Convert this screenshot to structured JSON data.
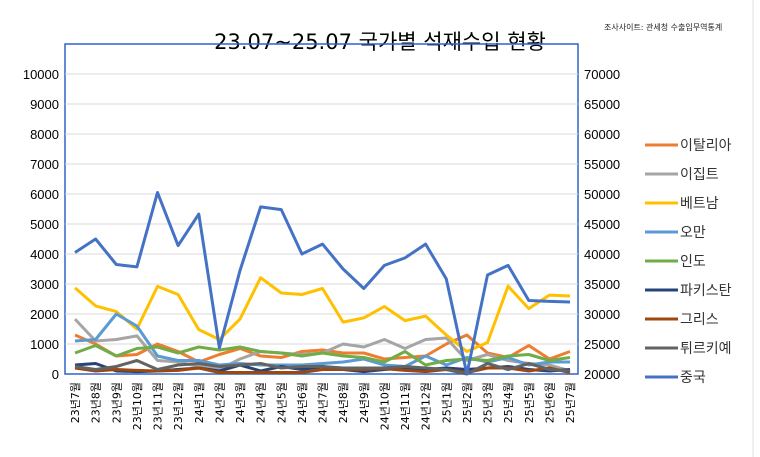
{
  "chart_data": {
    "type": "line",
    "title": "23.07~25.07 국가별 석재수입 현황",
    "source": "조사사이트: 관세청 수출입무역통계",
    "categories": [
      "23년7월",
      "23년8월",
      "23년9월",
      "23년10월",
      "23년11월",
      "23년12월",
      "24년1월",
      "24년2월",
      "24년3월",
      "24년4월",
      "24년5월",
      "24년6월",
      "24년7월",
      "24년8월",
      "24년9월",
      "24년10월",
      "24년11월",
      "24년12월",
      "25년1월",
      "25년2월",
      "25년3월",
      "25년4월",
      "25년5월",
      "25년6월",
      "25년7월"
    ],
    "ylim": [
      0,
      10000
    ],
    "y2lim": [
      20000,
      70000
    ],
    "yticks": [
      "0",
      "1000",
      "2000",
      "3000",
      "4000",
      "5000",
      "6000",
      "7000",
      "8000",
      "9000",
      "10000"
    ],
    "y2ticks": [
      "20000",
      "25000",
      "30000",
      "35000",
      "40000",
      "45000",
      "50000",
      "55000",
      "60000",
      "65000",
      "70000"
    ],
    "grid": true,
    "legend_position": "right",
    "series": [
      {
        "name": "이탈리아",
        "color": "#ED7D31",
        "axis": "left",
        "values": [
          1300,
          1000,
          600,
          650,
          1000,
          750,
          400,
          650,
          850,
          600,
          550,
          750,
          800,
          700,
          700,
          500,
          550,
          600,
          1000,
          1300,
          700,
          550,
          950,
          500,
          750
        ]
      },
      {
        "name": "이집트",
        "color": "#A5A5A5",
        "axis": "left",
        "values": [
          1830,
          1100,
          1150,
          1270,
          450,
          400,
          250,
          150,
          500,
          750,
          700,
          650,
          700,
          1000,
          900,
          1150,
          850,
          1150,
          1200,
          450,
          650,
          450,
          350,
          300,
          100
        ]
      },
      {
        "name": "베트남",
        "color": "#FFC000",
        "axis": "left",
        "values": [
          2870,
          2270,
          2080,
          1500,
          2920,
          2650,
          1480,
          1150,
          1830,
          3210,
          2700,
          2650,
          2850,
          1730,
          1870,
          2250,
          1780,
          1930,
          1300,
          750,
          1050,
          2930,
          2180,
          2630,
          2600
        ]
      },
      {
        "name": "오만",
        "color": "#5B9BD5",
        "axis": "left",
        "values": [
          1100,
          1150,
          2000,
          1600,
          600,
          450,
          450,
          300,
          350,
          300,
          300,
          300,
          350,
          400,
          500,
          300,
          250,
          600,
          300,
          550,
          400,
          550,
          300,
          400,
          400
        ]
      },
      {
        "name": "인도",
        "color": "#70AD47",
        "axis": "left",
        "values": [
          700,
          950,
          600,
          850,
          900,
          700,
          900,
          800,
          900,
          750,
          700,
          600,
          700,
          600,
          550,
          400,
          750,
          300,
          450,
          500,
          450,
          600,
          650,
          450,
          550
        ]
      },
      {
        "name": "파키스탄",
        "color": "#264478",
        "axis": "left",
        "values": [
          300,
          350,
          100,
          80,
          100,
          150,
          200,
          100,
          300,
          100,
          250,
          150,
          250,
          150,
          80,
          150,
          200,
          150,
          200,
          150,
          200,
          250,
          150,
          100,
          150
        ]
      },
      {
        "name": "그리스",
        "color": "#9E480E",
        "axis": "left",
        "values": [
          200,
          100,
          150,
          120,
          100,
          120,
          200,
          50,
          50,
          50,
          50,
          50,
          150,
          150,
          150,
          180,
          120,
          80,
          150,
          50,
          200,
          200,
          100,
          200,
          50
        ]
      },
      {
        "name": "튀르키예",
        "color": "#636363",
        "axis": "left",
        "values": [
          250,
          150,
          250,
          450,
          150,
          300,
          350,
          250,
          300,
          350,
          200,
          250,
          250,
          200,
          200,
          200,
          250,
          200,
          150,
          0,
          350,
          150,
          350,
          150,
          100
        ]
      },
      {
        "name": "중국",
        "color": "#4472C4",
        "axis": "right",
        "values": [
          40250,
          42500,
          38250,
          37850,
          50250,
          41400,
          46650,
          24350,
          37250,
          47850,
          47400,
          40000,
          41650,
          37500,
          34250,
          38100,
          39350,
          41650,
          35850,
          20000,
          36500,
          38100,
          32250,
          32100,
          32000
        ]
      }
    ]
  }
}
